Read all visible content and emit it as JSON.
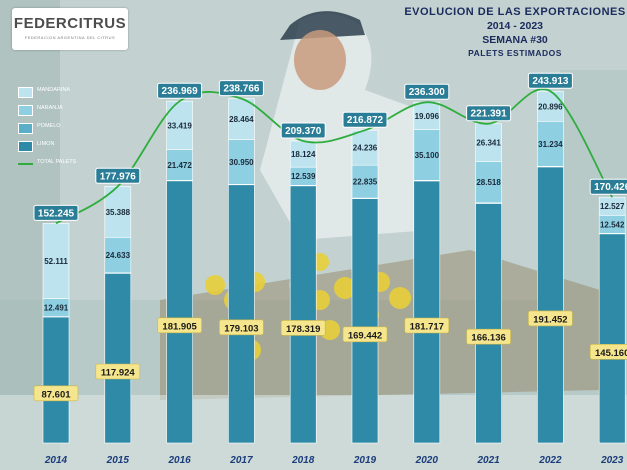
{
  "logo": {
    "text": "FEDERCITRUS",
    "subtext": "FEDERACION ARGENTINA DEL CITRUS"
  },
  "header": {
    "title": "EVOLUCION DE LAS EXPORTACIONES",
    "period": "2014 - 2023",
    "week": "SEMANA #30",
    "subtitle": "PALETS ESTIMADOS"
  },
  "colors": {
    "mandarina": "#bde3ee",
    "naranja": "#8fcfe2",
    "pomelo": "#5aaec8",
    "limon": "#2f8aa7",
    "total_line": "#2fae3f",
    "total_box": "#2a7d96",
    "limon_label_bg": "#f5e58c",
    "year_text": "#1a3c7a"
  },
  "chart_data": {
    "type": "bar",
    "stacked": true,
    "categories": [
      "2014",
      "2015",
      "2016",
      "2017",
      "2018",
      "2019",
      "2020",
      "2021",
      "2022",
      "2023"
    ],
    "series": [
      {
        "name": "MANDARINA",
        "values": [
          52.111,
          35.388,
          33.419,
          28.464,
          18.124,
          24.236,
          19.096,
          26.341,
          20.896,
          12.527
        ],
        "labels": [
          "52.111",
          "35.388",
          "33.419",
          "28.464",
          "18.124",
          "24.236",
          "19.096",
          "26.341",
          "20.896",
          "12.527"
        ]
      },
      {
        "name": "NARANJA",
        "values": [
          12.491,
          24.633,
          21.472,
          30.95,
          12.539,
          22.835,
          35.1,
          28.518,
          31.234,
          12.542
        ],
        "labels": [
          "12.491",
          "24.633",
          "21.472",
          "30.950",
          "12.539",
          "22.835",
          "35.100",
          "28.518",
          "31.234",
          "12.542"
        ]
      },
      {
        "name": "POMELO",
        "values": [
          0.042,
          0.031,
          0.173,
          0.249,
          0.388,
          0.359,
          0.387,
          0.396,
          0.331,
          0.197
        ],
        "labels": []
      },
      {
        "name": "LIMON",
        "values": [
          87.601,
          117.924,
          181.905,
          179.103,
          178.319,
          169.442,
          181.717,
          166.136,
          191.452,
          145.16
        ],
        "labels": [
          "87.601",
          "117.924",
          "181.905",
          "179.103",
          "178.319",
          "169.442",
          "181.717",
          "166.136",
          "191.452",
          "145.160"
        ]
      }
    ],
    "totals": {
      "name": "TOTAL PALETS",
      "values": [
        152.245,
        177.976,
        236.969,
        238.766,
        209.37,
        216.872,
        236.3,
        221.391,
        243.913,
        170.426
      ],
      "labels": [
        "152.245",
        "177.976",
        "236.969",
        "238.766",
        "209.370",
        "216.872",
        "236.300",
        "221.391",
        "243.913",
        "170.426"
      ]
    },
    "ylim": [
      0,
      260
    ],
    "grid": false,
    "legend_position": "top-left"
  }
}
